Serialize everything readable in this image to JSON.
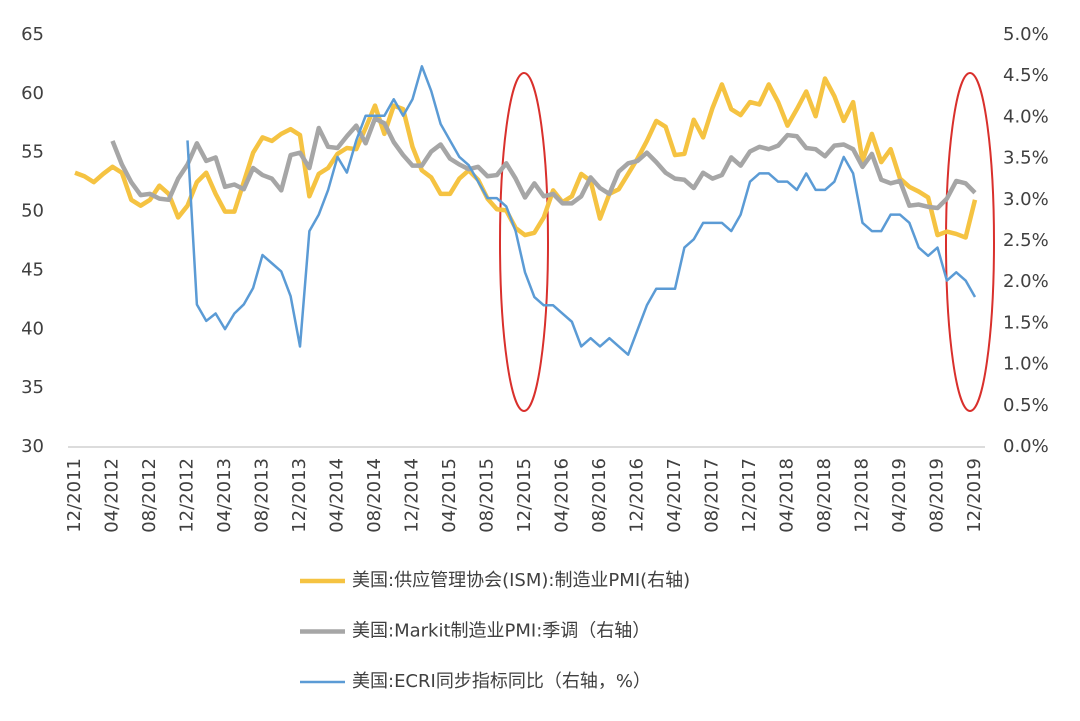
{
  "chart_data": {
    "type": "line",
    "categories": [
      "12/2011",
      null,
      null,
      null,
      "04/2012",
      null,
      null,
      null,
      "08/2012",
      null,
      null,
      null,
      "12/2012",
      null,
      null,
      null,
      "04/2013",
      null,
      null,
      null,
      "08/2013",
      null,
      null,
      null,
      "12/2013",
      null,
      null,
      null,
      "04/2014",
      null,
      null,
      null,
      "08/2014",
      null,
      null,
      null,
      "12/2014",
      null,
      null,
      null,
      "04/2015",
      null,
      null,
      null,
      "08/2015",
      null,
      null,
      null,
      "12/2015",
      null,
      null,
      null,
      "04/2016",
      null,
      null,
      null,
      "08/2016",
      null,
      null,
      null,
      "12/2016",
      null,
      null,
      null,
      "04/2017",
      null,
      null,
      null,
      "08/2017",
      null,
      null,
      null,
      "12/2017",
      null,
      null,
      null,
      "04/2018",
      null,
      null,
      null,
      "08/2018",
      null,
      null,
      null,
      "12/2018",
      null,
      null,
      null,
      "04/2019",
      null,
      null,
      null,
      "08/2019",
      null,
      null,
      null,
      "12/2019"
    ],
    "series": [
      {
        "name": "美国:供应管理协会(ISM):制造业PMI(右轴)",
        "color": "#f5c342",
        "axis": "y",
        "values": [
          53.3,
          53.0,
          52.5,
          53.2,
          53.8,
          53.3,
          51.0,
          50.5,
          51.0,
          52.2,
          51.5,
          49.5,
          50.5,
          52.5,
          53.3,
          51.5,
          50.0,
          50.0,
          52.5,
          55.0,
          56.3,
          56.0,
          56.6,
          57.0,
          56.5,
          51.3,
          53.2,
          53.7,
          54.9,
          55.4,
          55.3,
          57.1,
          59.0,
          56.6,
          59.0,
          58.7,
          55.5,
          53.5,
          52.9,
          51.5,
          51.5,
          52.8,
          53.5,
          52.7,
          51.1,
          50.2,
          50.1,
          48.6,
          48.0,
          48.2,
          49.5,
          51.8,
          50.8,
          51.3,
          53.2,
          52.6,
          49.4,
          51.5,
          51.9,
          53.2,
          54.5,
          56.0,
          57.7,
          57.2,
          54.8,
          54.9,
          57.8,
          56.3,
          58.8,
          60.8,
          58.7,
          58.2,
          59.3,
          59.1,
          60.8,
          59.3,
          57.3,
          58.7,
          60.2,
          58.1,
          61.3,
          59.8,
          57.7,
          59.3,
          54.3,
          56.6,
          54.2,
          55.3,
          52.8,
          52.1,
          51.7,
          51.2,
          48.0,
          48.3,
          48.1,
          47.8,
          51.0
        ]
      },
      {
        "name": "美国:Markit制造业PMI:季调（右轴）",
        "color": "#a6a6a6",
        "axis": "y",
        "values": [
          null,
          null,
          null,
          null,
          56.0,
          54.0,
          52.5,
          51.4,
          51.5,
          51.1,
          51.0,
          52.8,
          54.0,
          55.8,
          54.3,
          54.6,
          52.1,
          52.3,
          51.9,
          53.7,
          53.1,
          52.8,
          51.8,
          54.8,
          55.0,
          53.7,
          57.1,
          55.5,
          55.4,
          56.4,
          57.3,
          55.8,
          57.9,
          57.5,
          55.9,
          54.8,
          53.9,
          53.9,
          55.1,
          55.7,
          54.5,
          54.0,
          53.6,
          53.8,
          53.0,
          53.1,
          54.1,
          52.8,
          51.2,
          52.4,
          51.3,
          51.5,
          50.7,
          50.7,
          51.3,
          52.9,
          52.0,
          51.5,
          53.4,
          54.1,
          54.3,
          55.0,
          54.2,
          53.3,
          52.8,
          52.7,
          52.0,
          53.3,
          52.8,
          53.1,
          54.6,
          53.9,
          55.1,
          55.5,
          55.3,
          55.6,
          56.5,
          56.4,
          55.4,
          55.3,
          54.7,
          55.6,
          55.7,
          55.3,
          53.8,
          54.9,
          52.7,
          52.4,
          52.6,
          50.5,
          50.6,
          50.4,
          50.3,
          51.1,
          52.6,
          52.4,
          51.6
        ]
      },
      {
        "name": "美国:ECRI同步指标同比（右轴，%）",
        "color": "#5b9bd5",
        "axis": "y2",
        "values": [
          null,
          null,
          null,
          null,
          null,
          null,
          null,
          null,
          null,
          null,
          null,
          null,
          3.72,
          1.73,
          1.53,
          1.62,
          1.43,
          1.62,
          1.73,
          1.93,
          2.33,
          2.23,
          2.13,
          1.83,
          1.22,
          2.62,
          2.82,
          3.12,
          3.52,
          3.33,
          3.72,
          4.02,
          4.02,
          4.02,
          4.22,
          4.02,
          4.22,
          4.62,
          4.32,
          3.92,
          3.72,
          3.52,
          3.42,
          3.22,
          3.02,
          3.02,
          2.92,
          2.62,
          2.12,
          1.82,
          1.72,
          1.72,
          1.62,
          1.52,
          1.22,
          1.32,
          1.22,
          1.32,
          1.22,
          1.12,
          1.42,
          1.72,
          1.92,
          1.92,
          1.92,
          2.42,
          2.52,
          2.72,
          2.72,
          2.72,
          2.62,
          2.82,
          3.22,
          3.32,
          3.32,
          3.22,
          3.22,
          3.12,
          3.32,
          3.12,
          3.12,
          3.22,
          3.52,
          3.32,
          2.72,
          2.62,
          2.62,
          2.82,
          2.82,
          2.72,
          2.42,
          2.32,
          2.42,
          2.02,
          2.12,
          2.02,
          1.82
        ]
      }
    ],
    "ylim": [
      30,
      65
    ],
    "yticks": [
      30,
      35,
      40,
      45,
      50,
      55,
      60,
      65
    ],
    "y2lim": [
      0,
      5
    ],
    "y2ticks": [
      {
        "value": 0,
        "label": "0.0%"
      },
      {
        "value": 0.5,
        "label": "0.5%"
      },
      {
        "value": 1,
        "label": "1.0%"
      },
      {
        "value": 1.5,
        "label": "1.5%"
      },
      {
        "value": 2,
        "label": "2.0%"
      },
      {
        "value": 2.5,
        "label": "2.5%"
      },
      {
        "value": 3,
        "label": "3.0%"
      },
      {
        "value": 3.5,
        "label": "3.5%"
      },
      {
        "value": 4,
        "label": "4.0%"
      },
      {
        "value": 4.5,
        "label": "4.5%"
      },
      {
        "value": 5,
        "label": "5.0%"
      }
    ],
    "legend": "bottom"
  }
}
